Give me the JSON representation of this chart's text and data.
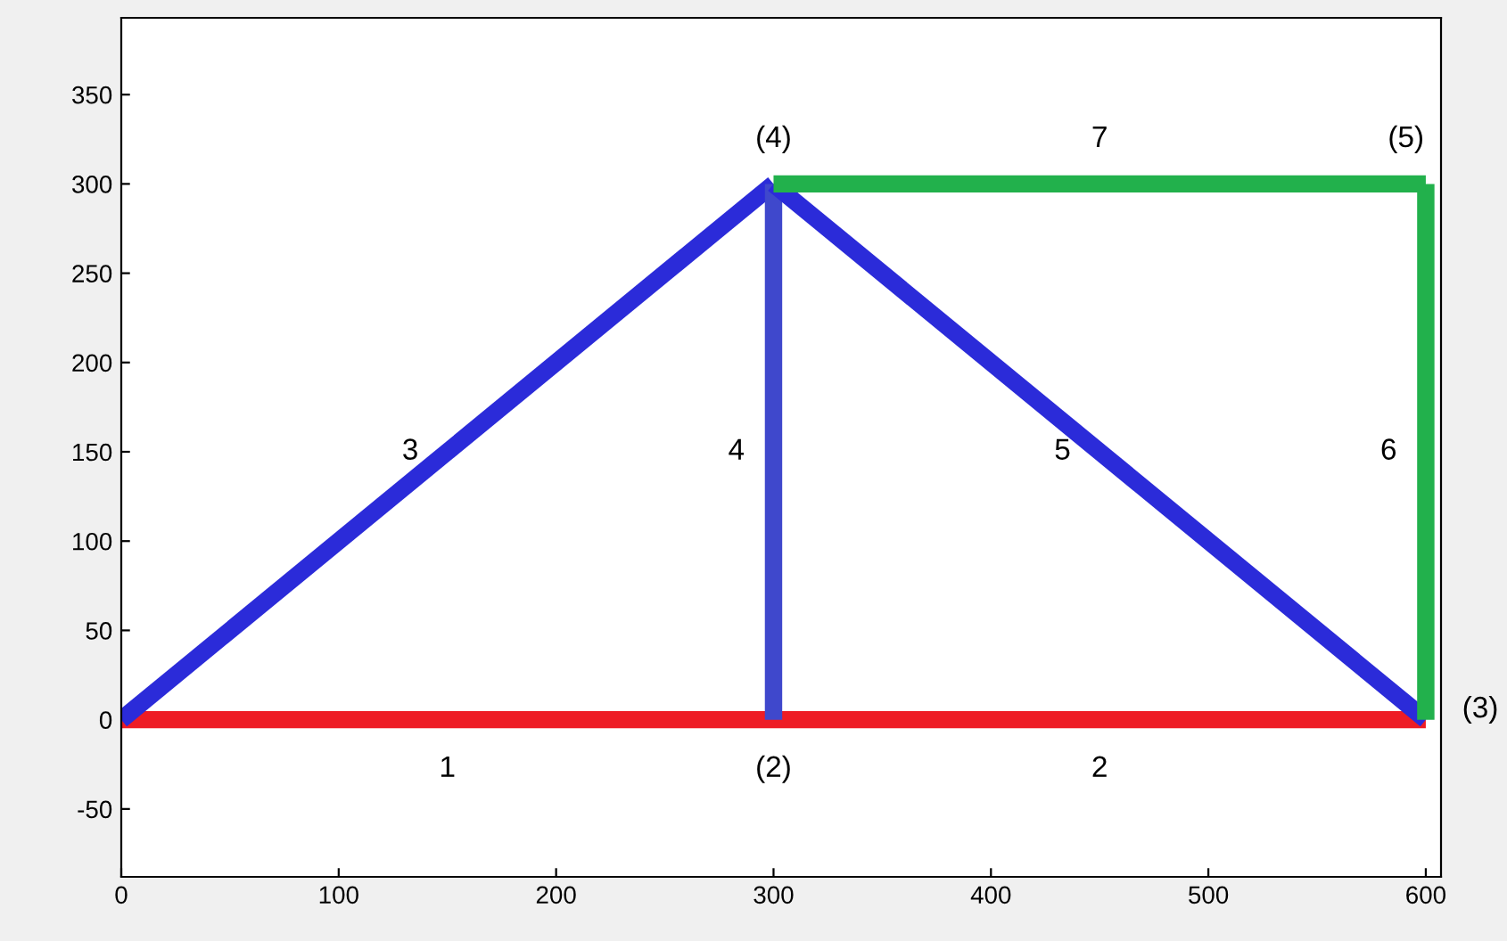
{
  "chart_data": {
    "type": "line",
    "xlim": [
      0,
      607
    ],
    "ylim": [
      -88,
      393
    ],
    "xticks": [
      0,
      100,
      200,
      300,
      400,
      500,
      600
    ],
    "yticks": [
      -50,
      0,
      50,
      100,
      150,
      200,
      250,
      300,
      350
    ],
    "grid": false,
    "legend": false,
    "marker": "none",
    "line_style": "solid",
    "series": [
      {
        "color": "#ee1c25",
        "x": [
          0,
          300,
          600
        ],
        "values": [
          0,
          0,
          0
        ]
      },
      {
        "color": "#2b2bd9",
        "x": [
          0,
          300
        ],
        "values": [
          0,
          300
        ]
      },
      {
        "color": "#3f48cc",
        "x": [
          300,
          300
        ],
        "values": [
          0,
          300
        ]
      },
      {
        "color": "#2b2bd9",
        "x": [
          300,
          600
        ],
        "values": [
          300,
          0
        ]
      },
      {
        "color": "#22b14c",
        "x": [
          600,
          600
        ],
        "values": [
          0,
          300
        ]
      },
      {
        "color": "#22b14c",
        "x": [
          300,
          600
        ],
        "values": [
          300,
          300
        ]
      }
    ],
    "annotations": [
      {
        "text": "1",
        "x": 150,
        "y": 0
      },
      {
        "text": "2",
        "x": 450,
        "y": 0
      },
      {
        "text": "3",
        "x": 150,
        "y": 150
      },
      {
        "text": "4",
        "x": 300,
        "y": 150
      },
      {
        "text": "5",
        "x": 450,
        "y": 150
      },
      {
        "text": "6",
        "x": 600,
        "y": 150
      },
      {
        "text": "7",
        "x": 450,
        "y": 300
      },
      {
        "text": "(2)",
        "x": 300,
        "y": 0
      },
      {
        "text": "(3)",
        "x": 600,
        "y": 0
      },
      {
        "text": "(4)",
        "x": 300,
        "y": 300
      },
      {
        "text": "(5)",
        "x": 600,
        "y": 300
      }
    ]
  }
}
